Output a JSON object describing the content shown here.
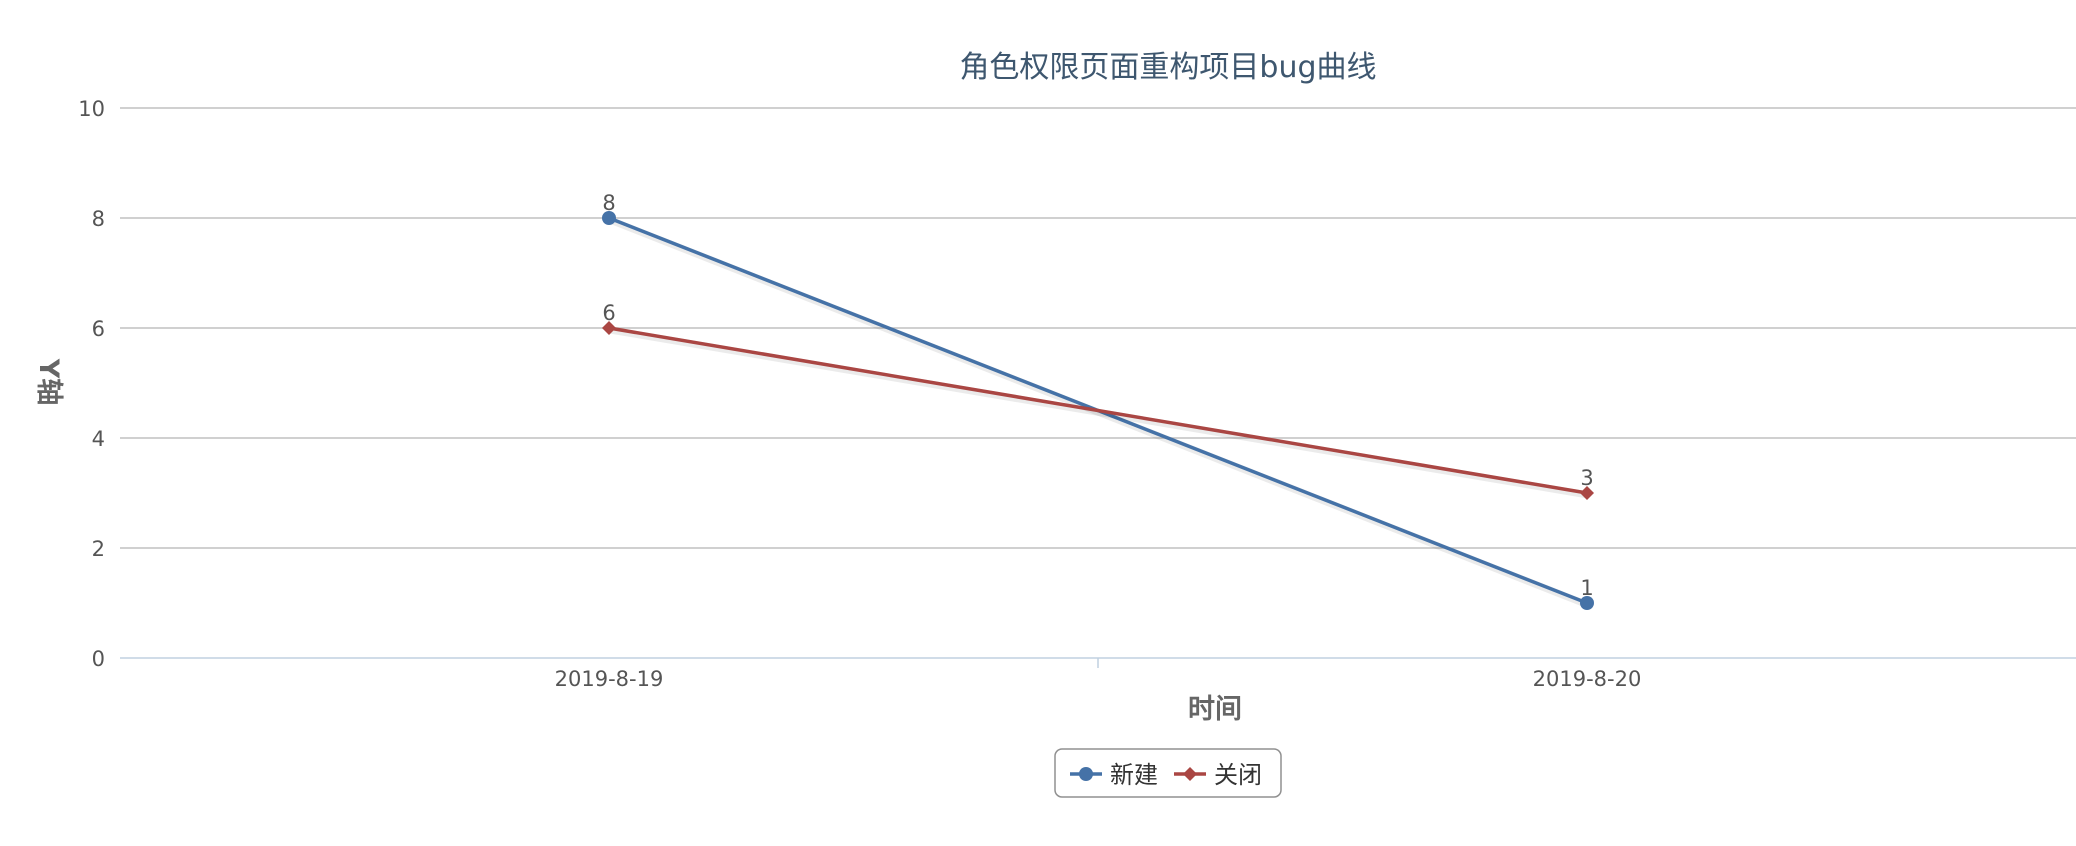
{
  "chart_data": {
    "type": "line",
    "title": "角色权限页面重构项目bug曲线",
    "xlabel": "时间",
    "ylabel": "Y轴",
    "categories": [
      "2019-8-19",
      "2019-8-20"
    ],
    "ylim": [
      0,
      10
    ],
    "yticks": [
      0,
      2,
      4,
      6,
      8,
      10
    ],
    "grid": true,
    "legend_position": "bottom-center",
    "series": [
      {
        "name": "新建",
        "values": [
          8,
          1
        ],
        "color": "#4572a7",
        "marker": "circle"
      },
      {
        "name": "关闭",
        "values": [
          6,
          3
        ],
        "color": "#aa4643",
        "marker": "diamond"
      }
    ]
  }
}
